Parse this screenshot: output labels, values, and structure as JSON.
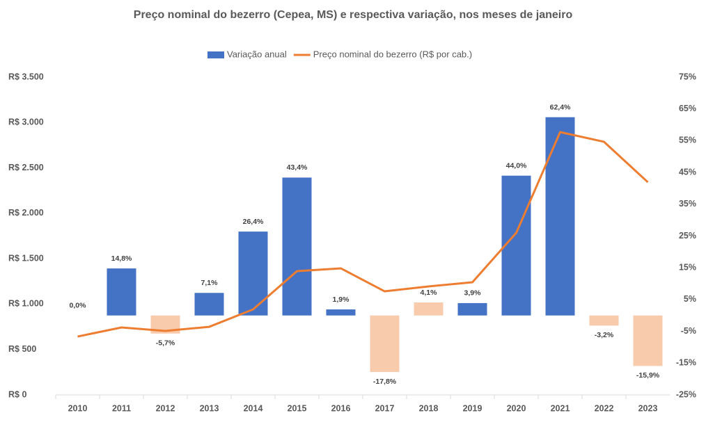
{
  "chart_data": {
    "type": "combo",
    "title": "Preço nominal do bezerro (Cepea, MS) e respectiva variação, nos meses de janeiro",
    "categories": [
      "2010",
      "2011",
      "2012",
      "2013",
      "2014",
      "2015",
      "2016",
      "2017",
      "2018",
      "2019",
      "2020",
      "2021",
      "2022",
      "2023"
    ],
    "series": [
      {
        "name": "Variação anual",
        "type": "bar",
        "axis": "y2",
        "color": "#4472c4",
        "colors": [
          "#4472c4",
          "#4472c4",
          "#f8cbad",
          "#4472c4",
          "#4472c4",
          "#4472c4",
          "#4472c4",
          "#f8cbad",
          "#f8cbad",
          "#4472c4",
          "#4472c4",
          "#4472c4",
          "#f8cbad",
          "#f8cbad"
        ],
        "values": [
          0,
          14.8,
          -5.7,
          7.1,
          26.4,
          43.4,
          1.9,
          -17.8,
          4.1,
          3.9,
          44.0,
          62.4,
          -3.2,
          -15.9
        ],
        "value_labels": [
          "0,0%",
          "14,8%",
          "-5,7%",
          "7,1%",
          "26,4%",
          "43,4%",
          "1,9%",
          "-17,8%",
          "4,1%",
          "3,9%",
          "44,0%",
          "62,4%",
          "-3,2%",
          "-15,9%"
        ]
      },
      {
        "name": "Preço nominal do bezerro (R$ por cab.)",
        "type": "line",
        "axis": "y",
        "color": "#ed7d31",
        "values": [
          643,
          743,
          705,
          750,
          942,
          1363,
          1394,
          1141,
          1195,
          1241,
          1785,
          2895,
          2788,
          2343
        ]
      }
    ],
    "ylim": [
      0,
      3500
    ],
    "yticks": [
      {
        "value": 0,
        "label": "R$ 0"
      },
      {
        "value": 500,
        "label": "R$ 500"
      },
      {
        "value": 1000,
        "label": "R$ 1.000"
      },
      {
        "value": 1500,
        "label": "R$ 1.500"
      },
      {
        "value": 2000,
        "label": "R$ 2.000"
      },
      {
        "value": 2500,
        "label": "R$ 2.500"
      },
      {
        "value": 3000,
        "label": "R$ 3.000"
      },
      {
        "value": 3500,
        "label": "R$ 3.500"
      }
    ],
    "y2lim": [
      -25,
      75
    ],
    "y2ticks": [
      {
        "value": -25,
        "label": "-25%"
      },
      {
        "value": -15,
        "label": "-15%"
      },
      {
        "value": -5,
        "label": "-5%"
      },
      {
        "value": 5,
        "label": "5%"
      },
      {
        "value": 15,
        "label": "15%"
      },
      {
        "value": 25,
        "label": "25%"
      },
      {
        "value": 35,
        "label": "35%"
      },
      {
        "value": 45,
        "label": "45%"
      },
      {
        "value": 55,
        "label": "55%"
      },
      {
        "value": 65,
        "label": "65%"
      },
      {
        "value": 75,
        "label": "75%"
      }
    ],
    "grid": false
  }
}
